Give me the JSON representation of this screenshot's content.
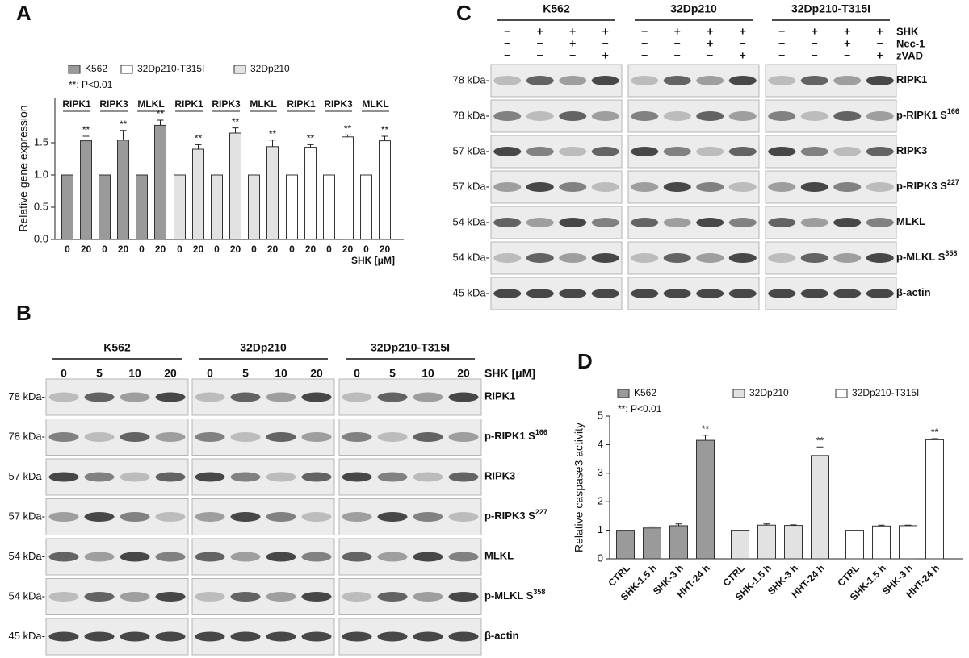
{
  "panel_labels": [
    "A",
    "B",
    "C",
    "D"
  ],
  "chart_data": [
    {
      "type": "bar",
      "y_label": "Relative gene expression",
      "x_label": "SHK [μM]",
      "note": "**: P<0.01",
      "genes": [
        "RIPK1",
        "RIPK3",
        "MLKL"
      ],
      "categories": [
        "0",
        "20",
        "0",
        "20",
        "0",
        "20"
      ],
      "ylim": [
        0,
        2.2
      ],
      "yticks": [
        {
          "value": 0,
          "label": "0.0"
        },
        0.5,
        {
          "value": 1,
          "label": "1.0"
        },
        1.5
      ],
      "series": [
        {
          "name": "K562",
          "color": "#9a9a9a",
          "values": [
            1,
            1.53,
            1,
            1.54,
            1,
            1.77
          ],
          "errors": [
            null,
            0.07,
            null,
            0.15,
            null,
            0.08
          ],
          "annotations": [
            null,
            "**",
            null,
            "**",
            null,
            "**"
          ]
        },
        {
          "name": "32Dp210-T315I",
          "color": "#ffffff",
          "values": [
            1,
            1.43,
            1,
            1.59,
            1,
            1.53
          ],
          "errors": [
            null,
            0.04,
            null,
            0.03,
            null,
            0.07
          ],
          "annotations": [
            null,
            "**",
            null,
            "**",
            null,
            "**"
          ]
        },
        {
          "name": "32Dp210",
          "color": "#e2e2e2",
          "values": [
            1,
            1.4,
            1,
            1.65,
            1,
            1.44
          ],
          "errors": [
            null,
            0.07,
            null,
            0.08,
            null,
            0.1
          ],
          "annotations": [
            null,
            "**",
            null,
            "**",
            null,
            "**"
          ]
        }
      ]
    },
    {
      "type": "bar",
      "y_label": "Relative caspase3 activity",
      "note": "**: P<0.01",
      "categories": [
        "CTRL",
        "SHK-1.5 h",
        "SHK-3 h",
        "HHT-24 h"
      ],
      "ylim": [
        0,
        5
      ],
      "yticks": [
        0,
        1,
        2,
        3,
        4,
        5
      ],
      "series": [
        {
          "name": "K562",
          "color": "#9a9a9a",
          "values": [
            1,
            1.08,
            1.16,
            4.15
          ],
          "errors": [
            null,
            0.04,
            0.06,
            0.18
          ],
          "annotations": [
            null,
            null,
            null,
            "**"
          ]
        },
        {
          "name": "32Dp210",
          "color": "#e2e2e2",
          "values": [
            1,
            1.18,
            1.17,
            3.62
          ],
          "errors": [
            null,
            0.04,
            0.02,
            0.3
          ],
          "annotations": [
            null,
            null,
            null,
            "**"
          ]
        },
        {
          "name": "32Dp210-T315I",
          "color": "#ffffff",
          "values": [
            1,
            1.15,
            1.16,
            4.17
          ],
          "errors": [
            null,
            0.03,
            0.02,
            0.04
          ],
          "annotations": [
            null,
            null,
            null,
            "**"
          ]
        }
      ]
    }
  ],
  "blot_b": {
    "cell_lines": [
      "K562",
      "32Dp210",
      "32Dp210-T315I"
    ],
    "doses": [
      "0",
      "5",
      "10",
      "20"
    ],
    "dose_label": "SHK [μM]",
    "rows": [
      {
        "mw": "78 kDa-",
        "protein": "RIPK1"
      },
      {
        "mw": "78 kDa-",
        "protein": "p-RIPK1 S",
        "sup": "166"
      },
      {
        "mw": "57 kDa-",
        "protein": "RIPK3"
      },
      {
        "mw": "57 kDa-",
        "protein": "p-RIPK3 S",
        "sup": "227"
      },
      {
        "mw": "54 kDa-",
        "protein": "MLKL"
      },
      {
        "mw": "54 kDa-",
        "protein": "p-MLKL S",
        "sup": "358"
      },
      {
        "mw": "45 kDa-",
        "protein": "β-actin"
      }
    ]
  },
  "blot_c": {
    "cell_lines": [
      "K562",
      "32Dp210",
      "32Dp210-T315I"
    ],
    "treatments": [
      {
        "name": "SHK",
        "signs": [
          "−",
          "+",
          "+",
          "+"
        ]
      },
      {
        "name": "Nec-1",
        "signs": [
          "−",
          "−",
          "+",
          "−"
        ]
      },
      {
        "name": "zVAD",
        "signs": [
          "−",
          "−",
          "−",
          "+"
        ]
      }
    ],
    "rows": [
      {
        "mw": "78 kDa-",
        "protein": "RIPK1"
      },
      {
        "mw": "78 kDa-",
        "protein": "p-RIPK1 S",
        "sup": "166"
      },
      {
        "mw": "57 kDa-",
        "protein": "RIPK3"
      },
      {
        "mw": "57 kDa-",
        "protein": "p-RIPK3 S",
        "sup": "227"
      },
      {
        "mw": "54 kDa-",
        "protein": "MLKL"
      },
      {
        "mw": "54 kDa-",
        "protein": "p-MLKL S",
        "sup": "358"
      },
      {
        "mw": "45 kDa-",
        "protein": "β-actin"
      }
    ]
  }
}
